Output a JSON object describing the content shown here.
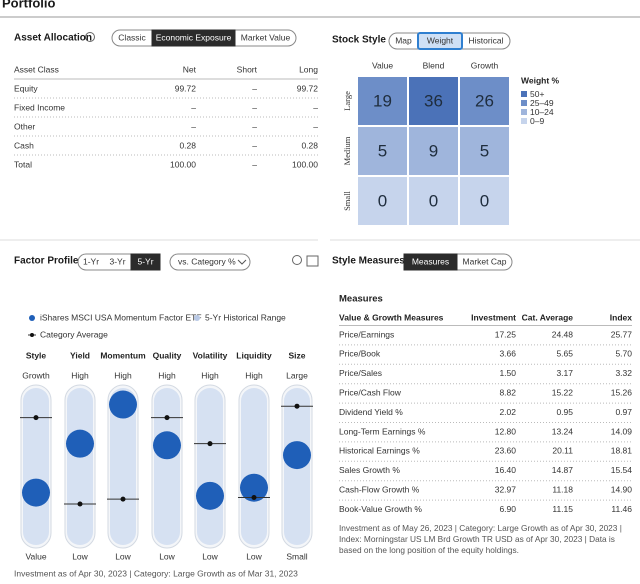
{
  "header": {
    "title": "Portfolio"
  },
  "asset_allocation": {
    "title": "Asset Allocation",
    "tabs": [
      "Classic",
      "Economic Exposure",
      "Market Value"
    ],
    "columns": [
      "Asset Class",
      "Net",
      "Short",
      "Long"
    ],
    "rows": [
      [
        "Equity",
        "99.72",
        "–",
        "99.72"
      ],
      [
        "Fixed Income",
        "–",
        "–",
        "–"
      ],
      [
        "Other",
        "–",
        "–",
        "–"
      ],
      [
        "Cash",
        "0.28",
        "–",
        "0.28"
      ],
      [
        "Total",
        "100.00",
        "–",
        "100.00"
      ]
    ]
  },
  "stock_style": {
    "title": "Stock Style",
    "tabs": [
      "Map",
      "Weight",
      "Historical"
    ],
    "columns": [
      "Value",
      "Blend",
      "Growth"
    ],
    "rows": [
      "Large",
      "Medium",
      "Small"
    ],
    "cells": [
      [
        19,
        36,
        26
      ],
      [
        5,
        9,
        5
      ],
      [
        0,
        0,
        0
      ]
    ],
    "legend_title": "Weight %",
    "legend": [
      "50+",
      "25–49",
      "10–24",
      "0–9"
    ]
  },
  "factor_profile": {
    "title": "Factor Profile",
    "tabs": [
      "1-Yr",
      "3-Yr",
      "5-Yr"
    ],
    "dropdown": "vs. Category %",
    "legend": [
      "iShares MSCI USA Momentum Factor ETF",
      "5-Yr Historical Range",
      "Category Average"
    ],
    "factors": [
      {
        "name": "Style",
        "high": "Growth",
        "low": "Value",
        "fund": 34,
        "category": 80
      },
      {
        "name": "Yield",
        "high": "High",
        "low": "Low",
        "fund": 64,
        "category": 27
      },
      {
        "name": "Momentum",
        "high": "High",
        "low": "Low",
        "fund": 88,
        "category": 30
      },
      {
        "name": "Quality",
        "high": "High",
        "low": "Low",
        "fund": 63,
        "category": 80
      },
      {
        "name": "Volatility",
        "high": "High",
        "low": "Low",
        "fund": 32,
        "category": 64
      },
      {
        "name": "Liquidity",
        "high": "High",
        "low": "Low",
        "fund": 37,
        "category": 31
      },
      {
        "name": "Size",
        "high": "Large",
        "low": "Small",
        "fund": 57,
        "category": 87
      }
    ],
    "footer": "Investment as of Apr 30, 2023 | Category: Large Growth as of Mar 31, 2023"
  },
  "style_measures": {
    "title": "Style Measures",
    "tabs": [
      "Measures",
      "Market Cap"
    ],
    "subtitle": "Measures",
    "columns": [
      "Value & Growth Measures",
      "Investment",
      "Cat. Average",
      "Index"
    ],
    "rows": [
      [
        "Price/Earnings",
        "17.25",
        "24.48",
        "25.77"
      ],
      [
        "Price/Book",
        "3.66",
        "5.65",
        "5.70"
      ],
      [
        "Price/Sales",
        "1.50",
        "3.17",
        "3.32"
      ],
      [
        "Price/Cash Flow",
        "8.82",
        "15.22",
        "15.26"
      ],
      [
        "Dividend Yield %",
        "2.02",
        "0.95",
        "0.97"
      ],
      [
        "Long-Term Earnings %",
        "12.80",
        "13.24",
        "14.09"
      ],
      [
        "Historical Earnings %",
        "23.60",
        "20.11",
        "18.81"
      ],
      [
        "Sales Growth %",
        "16.40",
        "14.87",
        "15.54"
      ],
      [
        "Cash-Flow Growth %",
        "32.97",
        "11.18",
        "14.90"
      ],
      [
        "Book-Value Growth %",
        "6.90",
        "11.15",
        "11.46"
      ]
    ],
    "footnote": "Investment as of May 26, 2023 | Category: Large Growth as of Apr 30, 2023 | Index: Morningstar US LM Brd Growth TR USD as of Apr 30, 2023 | Data is based on the long position of the equity holdings."
  }
}
